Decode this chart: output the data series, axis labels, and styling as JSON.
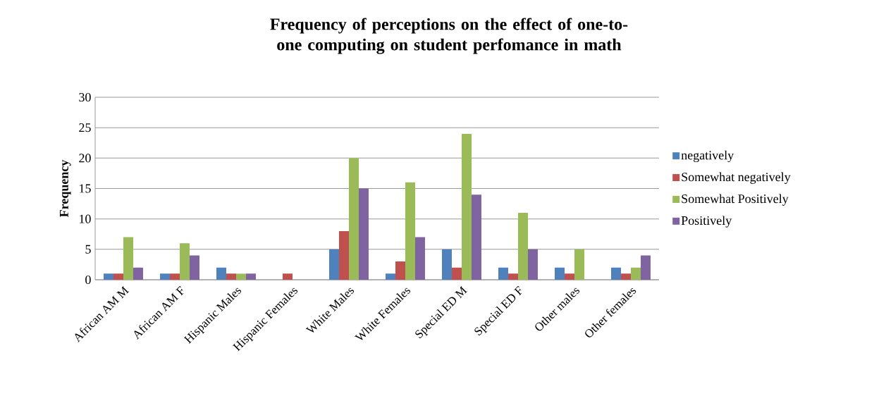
{
  "chart_data": {
    "type": "bar",
    "title": "Frequency of perceptions on the effect of one-to-one computing on student perfomance in math",
    "ylabel": "Frequency",
    "categories": [
      "African AM M",
      "African AM F",
      "Hispanic Males",
      "Hispanic Females",
      "White Males",
      "White Females",
      "Special ED M",
      "Special ED F",
      "Other males",
      "Other females"
    ],
    "series": [
      {
        "name": "negatively",
        "color": "#4f81bd",
        "values": [
          1,
          1,
          2,
          0,
          5,
          1,
          5,
          2,
          2,
          2
        ]
      },
      {
        "name": "Somewhat negatively",
        "color": "#c0504d",
        "values": [
          1,
          1,
          1,
          1,
          8,
          3,
          2,
          1,
          1,
          1
        ]
      },
      {
        "name": "Somewhat Positively",
        "color": "#9bbb59",
        "values": [
          7,
          6,
          1,
          0,
          20,
          16,
          24,
          11,
          5,
          2
        ]
      },
      {
        "name": "Positively",
        "color": "#8064a2",
        "values": [
          2,
          4,
          1,
          0,
          15,
          7,
          14,
          5,
          0,
          4
        ]
      }
    ],
    "ylim": [
      0,
      30
    ],
    "yticks": [
      0,
      5,
      10,
      15,
      20,
      25,
      30
    ],
    "grid": "y",
    "legend": "right"
  }
}
